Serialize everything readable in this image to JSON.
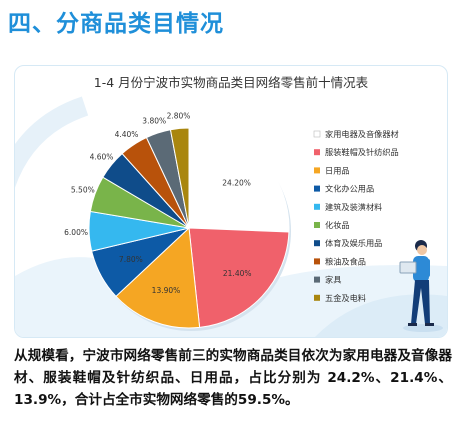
{
  "section_title": "四、分商品类目情况",
  "chart_data": {
    "type": "pie",
    "title": "1-4 月份宁波市实物商品类目网络零售前十情况表",
    "categories": [
      "家用电器及音像器材",
      "服装鞋帽及针纺织品",
      "日用品",
      "文化办公用品",
      "建筑及装潢材料",
      "化妆品",
      "体育及娱乐用品",
      "粮油及食品",
      "家具",
      "五金及电料"
    ],
    "values": [
      24.2,
      21.4,
      13.9,
      7.8,
      6.0,
      5.5,
      4.6,
      4.4,
      3.8,
      2.8
    ],
    "value_labels": [
      "24.20%",
      "21.40%",
      "13.90%",
      "7.80%",
      "6.00%",
      "5.50%",
      "4.60%",
      "4.40%",
      "3.80%",
      "2.80%"
    ],
    "colors": [
      "#ffffff",
      "#f0616b",
      "#f5a623",
      "#0d5aa6",
      "#35b8ef",
      "#79b44a",
      "#0f4c8a",
      "#b8520b",
      "#5b6a76",
      "#a9860f"
    ],
    "legend_position": "right"
  },
  "paragraph": "从规模看，宁波市网络零售前三的实物商品类目依次为家用电器及音像器材、服装鞋帽及针纺织品、日用品，占比分别为 24.2%、21.4%、13.9%，合计占全市实物网络零售的59.5%。"
}
